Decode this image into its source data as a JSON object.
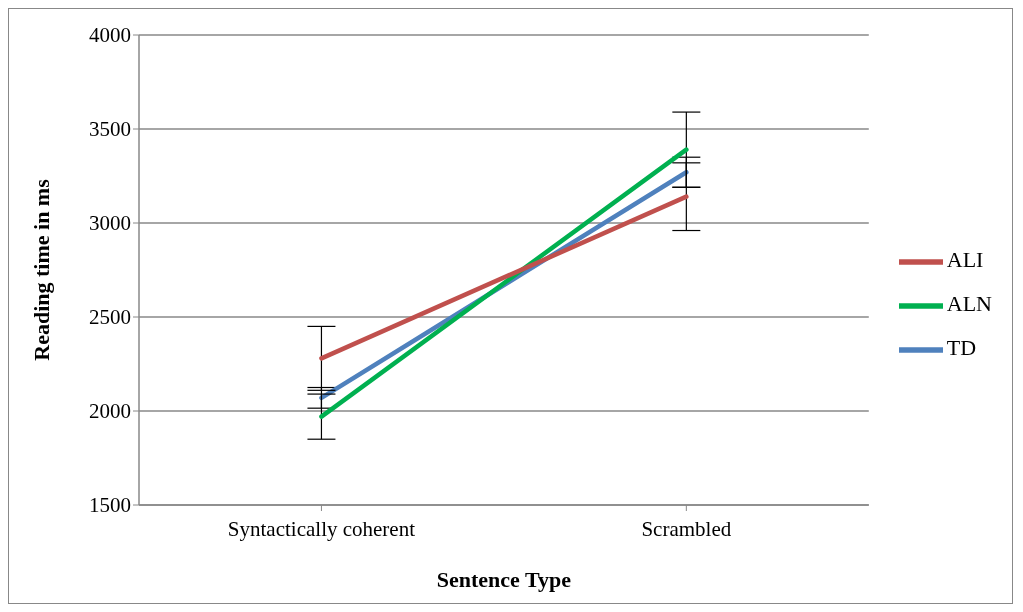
{
  "chart_data": {
    "type": "line",
    "xlabel": "Sentence Type",
    "ylabel": "Reading time in ms",
    "categories": [
      "Syntactically coherent",
      "Scrambled"
    ],
    "series": [
      {
        "name": "TD",
        "color": "#4f81bd",
        "values": [
          2070,
          3270
        ],
        "errors": [
          55,
          80
        ]
      },
      {
        "name": "ALN",
        "color": "#00b050",
        "values": [
          1970,
          3390
        ],
        "errors": [
          120,
          200
        ]
      },
      {
        "name": "ALI",
        "color": "#c0504d",
        "values": [
          2280,
          3140
        ],
        "errors": [
          170,
          180
        ]
      }
    ],
    "ylim": [
      1500,
      4000
    ],
    "yticks": [
      1500,
      2000,
      2500,
      3000,
      3500,
      4000
    ],
    "grid": "y",
    "legend": "right",
    "marker": "none",
    "line_style": "solid"
  }
}
